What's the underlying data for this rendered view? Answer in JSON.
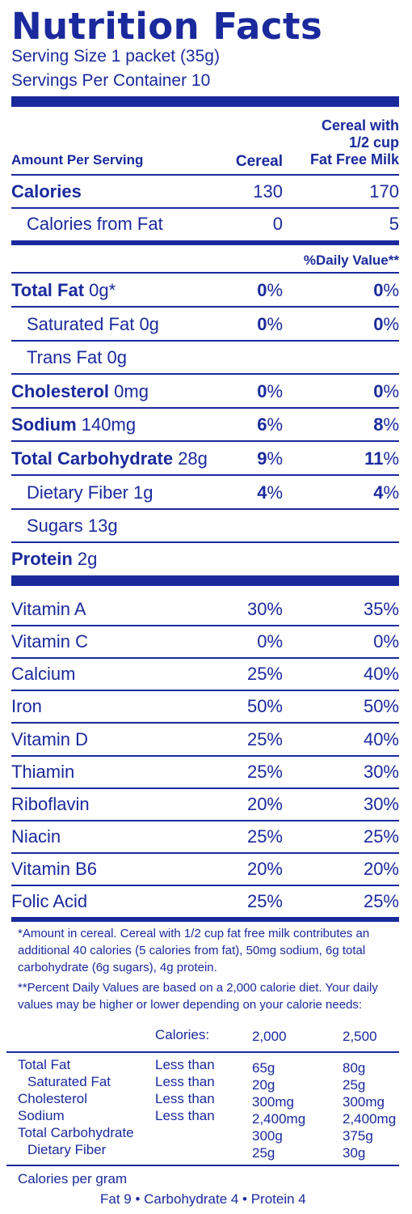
{
  "title": "Nutrition Facts",
  "serving_size": "Serving Size 1 packet (35g)",
  "servings_per_container": "Servings Per Container 10",
  "header": {
    "amount_per_serving": "Amount Per Serving",
    "col1": "Cereal",
    "col2_line1": "Cereal with",
    "col2_line2": "1/2 cup",
    "col2_line3": "Fat Free Milk"
  },
  "calories": {
    "label": "Calories",
    "cereal": "130",
    "with_milk": "170"
  },
  "calories_fat": {
    "label": "Calories from Fat",
    "cereal": "0",
    "with_milk": "5"
  },
  "daily_value_header": "%Daily Value**",
  "nutrients": [
    {
      "name": "Total Fat",
      "amount": "0g*",
      "cereal": "0",
      "with_milk": "0"
    },
    {
      "name": "Saturated Fat",
      "amount": "0g",
      "cereal": "0",
      "with_milk": "0"
    },
    {
      "name": "Trans Fat",
      "amount": "0g"
    },
    {
      "name": "Cholesterol",
      "amount": "0mg",
      "cereal": "0",
      "with_milk": "0"
    },
    {
      "name": "Sodium",
      "amount": "140mg",
      "cereal": "6",
      "with_milk": "8"
    },
    {
      "name": "Total Carbohydrate",
      "amount": "28g",
      "cereal": "9",
      "with_milk": "11"
    },
    {
      "name": "Dietary Fiber",
      "amount": "1g",
      "cereal": "4",
      "with_milk": "4"
    },
    {
      "name": "Sugars",
      "amount": "13g"
    },
    {
      "name": "Protein",
      "amount": "2g"
    }
  ],
  "percent_sign": "%",
  "vitamins": [
    {
      "name": "Vitamin A",
      "cereal": "30%",
      "with_milk": "35%"
    },
    {
      "name": "Vitamin C",
      "cereal": "0%",
      "with_milk": "0%"
    },
    {
      "name": "Calcium",
      "cereal": "25%",
      "with_milk": "40%"
    },
    {
      "name": "Iron",
      "cereal": "50%",
      "with_milk": "50%"
    },
    {
      "name": "Vitamin D",
      "cereal": "25%",
      "with_milk": "40%"
    },
    {
      "name": "Thiamin",
      "cereal": "25%",
      "with_milk": "30%"
    },
    {
      "name": "Riboflavin",
      "cereal": "20%",
      "with_milk": "30%"
    },
    {
      "name": "Niacin",
      "cereal": "25%",
      "with_milk": "25%"
    },
    {
      "name": "Vitamin B6",
      "cereal": "20%",
      "with_milk": "20%"
    },
    {
      "name": "Folic Acid",
      "cereal": "25%",
      "with_milk": "25%"
    }
  ],
  "footnote_amount": "*Amount in cereal. Cereal with 1/2 cup fat free milk contributes an additional 40 calories (5 calories from fat), 50mg sodium, 6g total carbohydrate (6g sugars), 4g protein.",
  "footnote_dv": "**Percent Daily Values are based on a 2,000 calorie diet. Your daily values may be higher or lower depending on your calorie needs:",
  "dv_table": {
    "calories_label": "Calories:",
    "col_2000": "2,000",
    "col_2500": "2,500",
    "rows": [
      {
        "name": "Total Fat",
        "qual": "Less than",
        "v2000": "65g",
        "v2500": "80g"
      },
      {
        "name": "Saturated Fat",
        "qual": "Less than",
        "v2000": "20g",
        "v2500": "25g"
      },
      {
        "name": "Cholesterol",
        "qual": "Less than",
        "v2000": "300mg",
        "v2500": "300mg"
      },
      {
        "name": "Sodium",
        "qual": "Less than",
        "v2000": "2,400mg",
        "v2500": "2,400mg"
      },
      {
        "name": "Total Carbohydrate",
        "qual": "",
        "v2000": "300g",
        "v2500": "375g"
      },
      {
        "name": "Dietary Fiber",
        "qual": "",
        "v2000": "25g",
        "v2500": "30g"
      }
    ]
  },
  "calories_per_gram": "Calories per gram",
  "calories_per_gram_values": "Fat 9 • Carbohydrate 4 • Protein 4",
  "colors": {
    "ink": "#1a2a9c",
    "background": "#ffffff"
  }
}
